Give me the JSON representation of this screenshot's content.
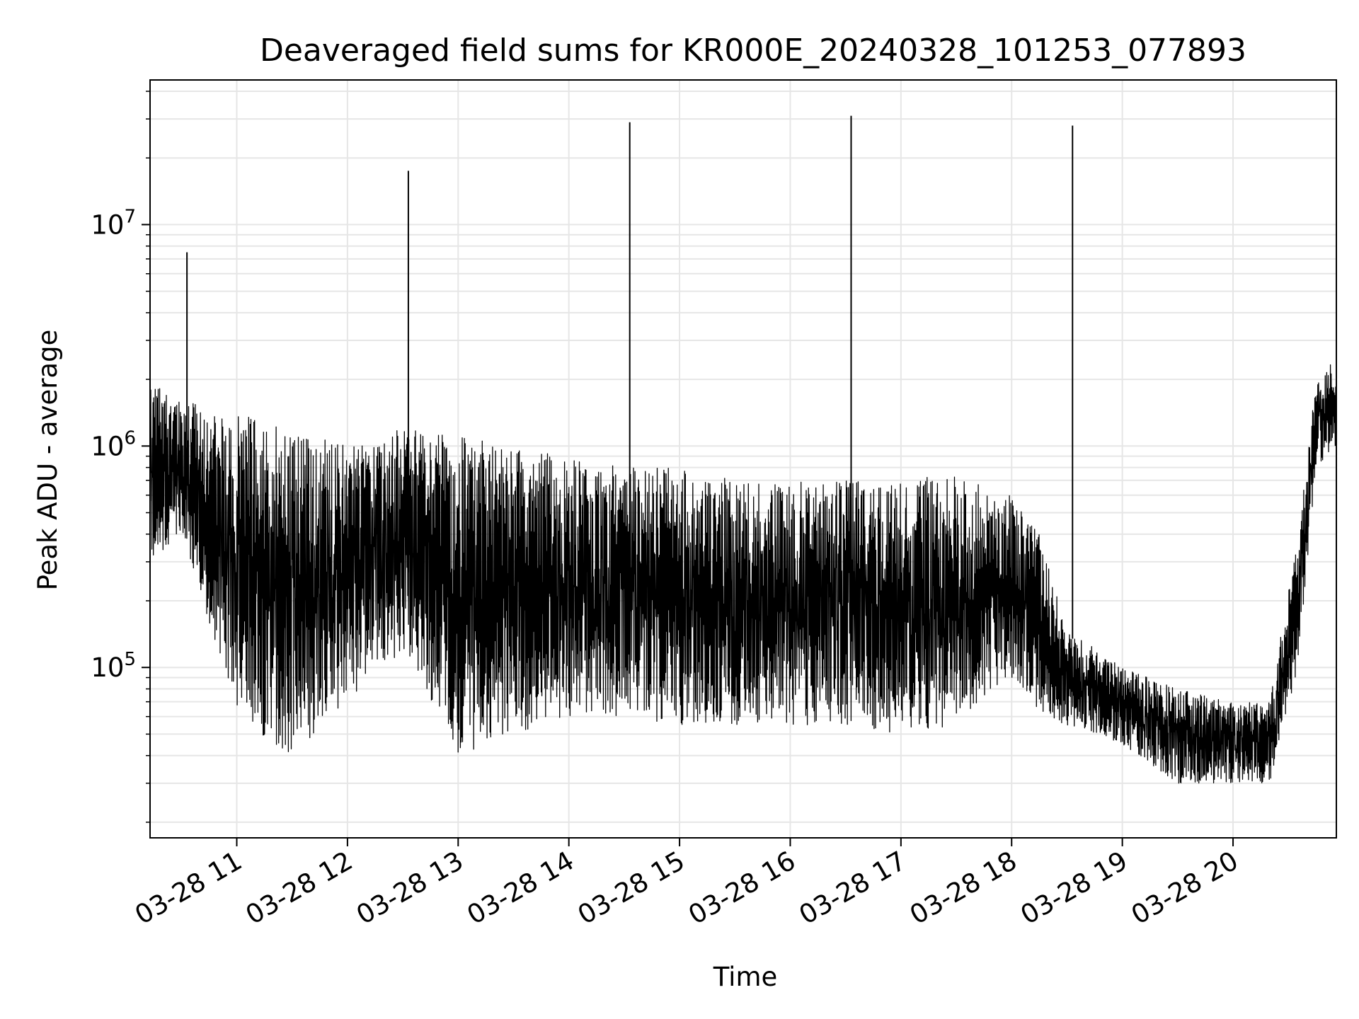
{
  "chart_data": {
    "type": "line",
    "title": "Deaveraged field sums for KR000E_20240328_101253_077893",
    "xlabel": "Time",
    "ylabel": "Peak ADU - average",
    "yscale": "log",
    "ylim": [
      17000,
      45000000
    ],
    "xlim": [
      "2024-03-28 10:13",
      "2024-03-28 20:56"
    ],
    "grid": true,
    "series_color": "#000000",
    "x_ticks": [
      {
        "t": "2024-03-28 11:00",
        "label": "03-28 11"
      },
      {
        "t": "2024-03-28 12:00",
        "label": "03-28 12"
      },
      {
        "t": "2024-03-28 13:00",
        "label": "03-28 13"
      },
      {
        "t": "2024-03-28 14:00",
        "label": "03-28 14"
      },
      {
        "t": "2024-03-28 15:00",
        "label": "03-28 15"
      },
      {
        "t": "2024-03-28 16:00",
        "label": "03-28 16"
      },
      {
        "t": "2024-03-28 17:00",
        "label": "03-28 17"
      },
      {
        "t": "2024-03-28 18:00",
        "label": "03-28 18"
      },
      {
        "t": "2024-03-28 19:00",
        "label": "03-28 19"
      },
      {
        "t": "2024-03-28 20:00",
        "label": "03-28 20"
      }
    ],
    "y_ticks": [
      {
        "value": 100000,
        "base": "10",
        "exp": "5"
      },
      {
        "value": 1000000,
        "base": "10",
        "exp": "6"
      },
      {
        "value": 10000000,
        "base": "10",
        "exp": "7"
      }
    ],
    "envelope": {
      "t": [
        "2024-03-28 10:13",
        "2024-03-28 10:30",
        "2024-03-28 11:00",
        "2024-03-28 11:30",
        "2024-03-28 12:00",
        "2024-03-28 12:30",
        "2024-03-28 13:00",
        "2024-03-28 13:30",
        "2024-03-28 14:00",
        "2024-03-28 14:30",
        "2024-03-28 15:00",
        "2024-03-28 15:30",
        "2024-03-28 16:00",
        "2024-03-28 16:30",
        "2024-03-28 17:00",
        "2024-03-28 17:30",
        "2024-03-28 18:00",
        "2024-03-28 18:15",
        "2024-03-28 18:30",
        "2024-03-28 19:00",
        "2024-03-28 19:30",
        "2024-03-28 20:00",
        "2024-03-28 20:20",
        "2024-03-28 20:35",
        "2024-03-28 20:45",
        "2024-03-28 20:56"
      ],
      "low": [
        300000,
        400000,
        60000,
        40000,
        70000,
        120000,
        40000,
        50000,
        60000,
        60000,
        55000,
        55000,
        55000,
        55000,
        50000,
        55000,
        90000,
        60000,
        55000,
        45000,
        30000,
        30000,
        30000,
        100000,
        800000,
        1000000
      ],
      "high": [
        2000000,
        1600000,
        1400000,
        1200000,
        1000000,
        1200000,
        1100000,
        1000000,
        900000,
        800000,
        800000,
        700000,
        700000,
        700000,
        700000,
        750000,
        600000,
        400000,
        150000,
        100000,
        80000,
        70000,
        70000,
        400000,
        2000000,
        2500000
      ]
    },
    "spikes": [
      {
        "t": "2024-03-28 10:33",
        "value": 7500000
      },
      {
        "t": "2024-03-28 12:33",
        "value": 17500000
      },
      {
        "t": "2024-03-28 14:33",
        "value": 29000000
      },
      {
        "t": "2024-03-28 16:33",
        "value": 31000000
      },
      {
        "t": "2024-03-28 18:33",
        "value": 28000000
      }
    ]
  }
}
